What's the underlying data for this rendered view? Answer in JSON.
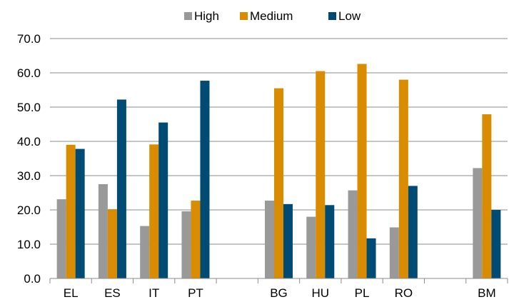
{
  "chart_data": {
    "type": "bar",
    "categories": [
      "EL",
      "ES",
      "IT",
      "PT",
      "",
      "BG",
      "HU",
      "PL",
      "RO",
      "",
      "BM"
    ],
    "series": [
      {
        "name": "High",
        "color": "#999999",
        "values": [
          23.1,
          27.5,
          15.3,
          19.6,
          null,
          22.7,
          18.0,
          25.7,
          14.9,
          null,
          32.2
        ]
      },
      {
        "name": "Medium",
        "color": "#D98C00",
        "values": [
          39.0,
          20.2,
          39.1,
          22.7,
          null,
          55.5,
          60.5,
          62.6,
          58.0,
          null,
          47.9
        ]
      },
      {
        "name": "Low",
        "color": "#004B73",
        "values": [
          37.8,
          52.2,
          45.5,
          57.7,
          null,
          21.7,
          21.4,
          11.7,
          27.0,
          null,
          20.0
        ]
      }
    ],
    "ylim": [
      0,
      70
    ],
    "yticks": [
      "0.0",
      "10.0",
      "20.0",
      "30.0",
      "40.0",
      "50.0",
      "60.0",
      "70.0"
    ],
    "grid": true,
    "legend_position": "top-center",
    "title": "",
    "xlabel": "",
    "ylabel": ""
  }
}
